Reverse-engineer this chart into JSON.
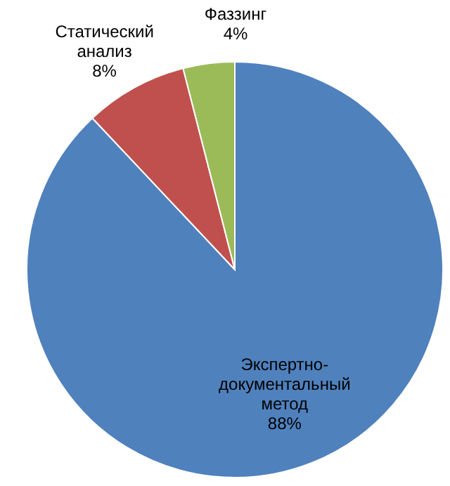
{
  "chart_data": {
    "type": "pie",
    "categories": [
      "Экспертно-документальный метод",
      "Статический анализ",
      "Фаззинг"
    ],
    "values": [
      88,
      8,
      4
    ],
    "colors": [
      "#4f81bd",
      "#c0504d",
      "#9bbb59"
    ],
    "value_labels": [
      "88%",
      "8%",
      "4%"
    ]
  }
}
